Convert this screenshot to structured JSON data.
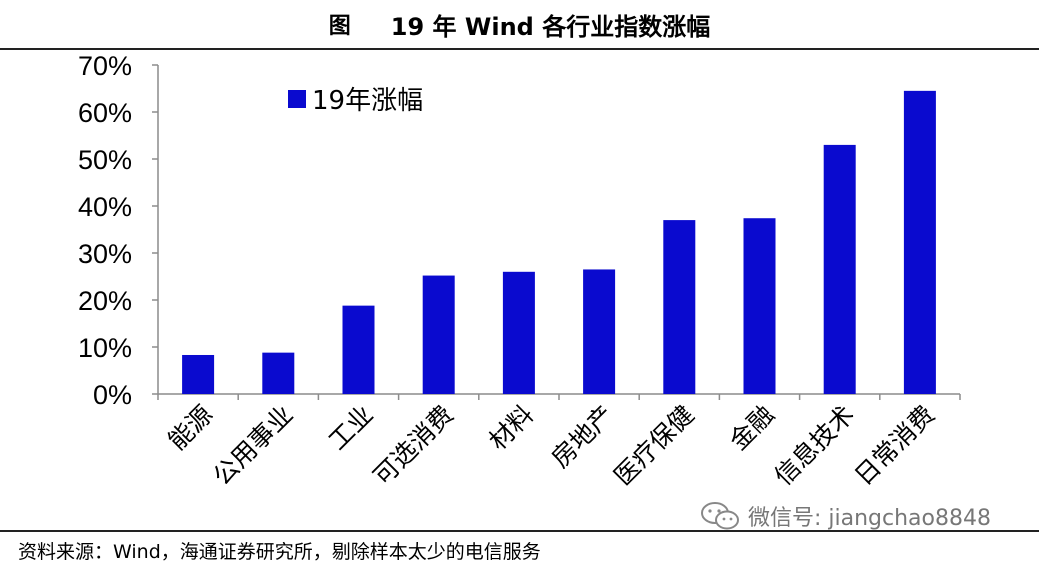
{
  "header": {
    "prefix": "图",
    "title": "19 年 Wind 各行业指数涨幅"
  },
  "footer": {
    "source": "资料来源：Wind，海通证券研究所，剔除样本太少的电信服务"
  },
  "watermark": {
    "text": "微信号: jiangchao8848",
    "icon": "wechat-icon"
  },
  "colors": {
    "bar": "#0A0ACF",
    "axis": "#8C8C8C"
  },
  "chart_data": {
    "type": "bar",
    "title": "",
    "xlabel": "",
    "ylabel": "",
    "categories": [
      "能源",
      "公用事业",
      "工业",
      "可选消费",
      "材料",
      "房地产",
      "医疗保健",
      "金融",
      "信息技术",
      "日常消费"
    ],
    "series": [
      {
        "name": "19年涨幅",
        "values": [
          8.3,
          8.8,
          18.8,
          25.2,
          26.0,
          26.5,
          37.0,
          37.4,
          53.0,
          64.5
        ]
      }
    ],
    "ylim": [
      0,
      70
    ],
    "yticks": [
      0,
      10,
      20,
      30,
      40,
      50,
      60,
      70
    ],
    "ytick_labels": [
      "0%",
      "10%",
      "20%",
      "30%",
      "40%",
      "50%",
      "60%",
      "70%"
    ],
    "grid": false,
    "legend": "top-left"
  }
}
